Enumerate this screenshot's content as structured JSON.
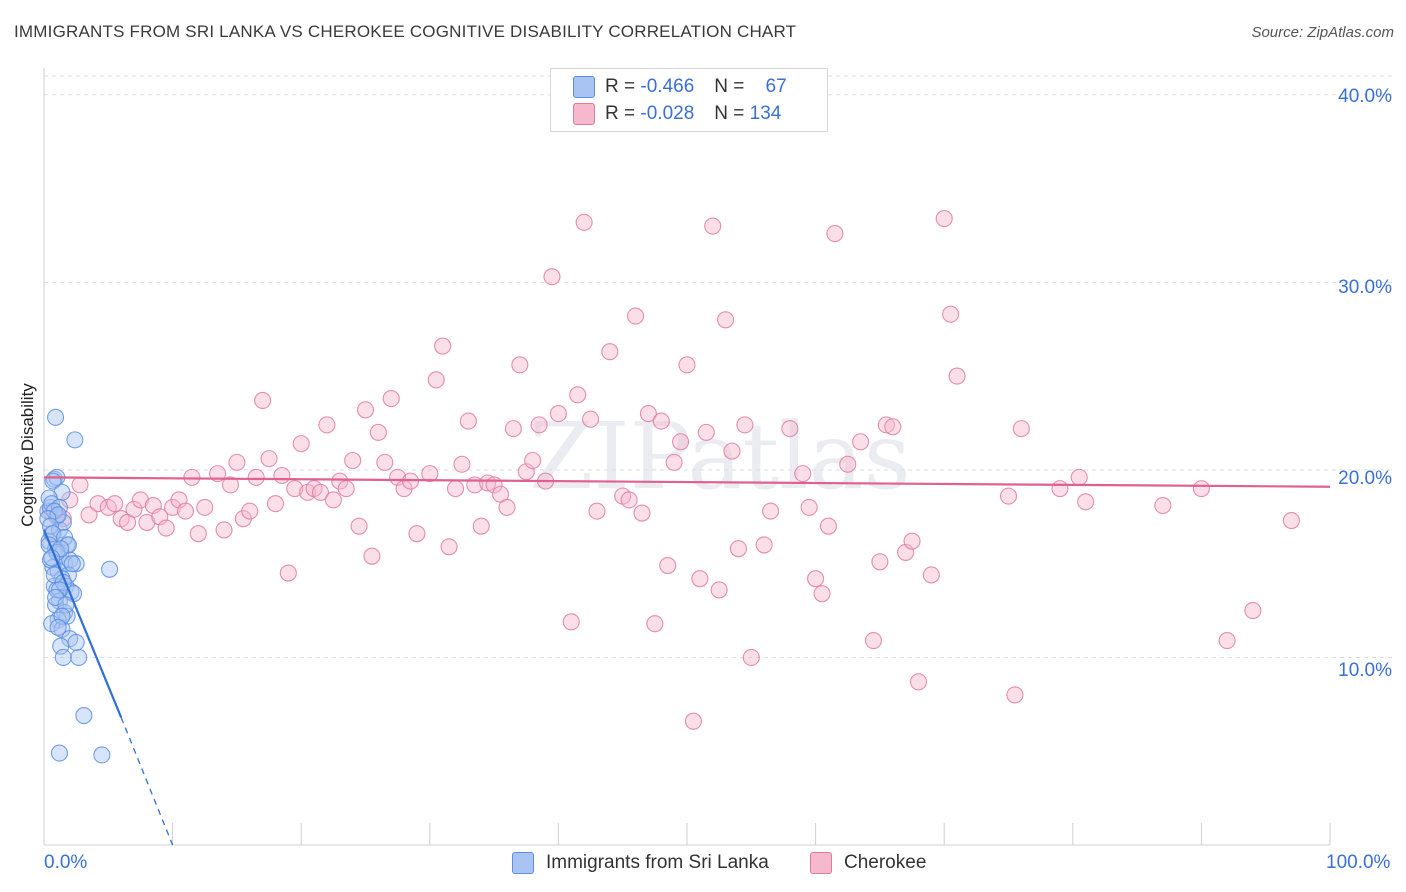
{
  "title": "IMMIGRANTS FROM SRI LANKA VS CHEROKEE COGNITIVE DISABILITY CORRELATION CHART",
  "source": "Source: ZipAtlas.com",
  "watermark": "ZIPatlas",
  "legend": {
    "rows": [
      {
        "r_label": "R =",
        "r_value": "-0.466",
        "n_label": "N =",
        "n_value": "67",
        "color": "#a9c4f2"
      },
      {
        "r_label": "R =",
        "r_value": "-0.028",
        "n_label": "N =",
        "n_value": "134",
        "color": "#f6b8cc"
      }
    ]
  },
  "chart_data": {
    "type": "scatter",
    "title": "IMMIGRANTS FROM SRI LANKA VS CHEROKEE COGNITIVE DISABILITY CORRELATION CHART",
    "xlabel": "",
    "ylabel": "Cognitive Disability",
    "xlim": [
      0,
      100
    ],
    "ylim": [
      0,
      41
    ],
    "x_tick_labels": [
      "0.0%",
      "100.0%"
    ],
    "y_ticks": [
      10,
      20,
      30,
      40
    ],
    "y_tick_labels": [
      "10.0%",
      "20.0%",
      "30.0%",
      "40.0%"
    ],
    "grid": "horizontal dashed",
    "legend_placement": "bottom-center",
    "series": [
      {
        "name": "Immigrants from Sri Lanka",
        "color": "#5b8fe0",
        "fill": "#a9c4f2",
        "trend": {
          "x": [
            0.0,
            6.0
          ],
          "y": [
            16.8,
            6.8
          ],
          "dashed_extension_to": [
            10.0,
            0.0
          ]
        },
        "points": [
          [
            0.3,
            17.8
          ],
          [
            0.5,
            18.0
          ],
          [
            0.8,
            19.5
          ],
          [
            1.0,
            17.5
          ],
          [
            0.6,
            16.6
          ],
          [
            0.4,
            16.2
          ],
          [
            1.2,
            16.8
          ],
          [
            1.5,
            17.2
          ],
          [
            1.8,
            16.0
          ],
          [
            0.9,
            15.8
          ],
          [
            1.3,
            15.5
          ],
          [
            1.6,
            15.0
          ],
          [
            2.0,
            15.2
          ],
          [
            2.5,
            15.0
          ],
          [
            0.7,
            14.8
          ],
          [
            1.1,
            14.6
          ],
          [
            0.5,
            15.2
          ],
          [
            1.9,
            14.4
          ],
          [
            1.4,
            14.2
          ],
          [
            0.8,
            13.8
          ],
          [
            1.0,
            13.6
          ],
          [
            1.7,
            13.8
          ],
          [
            2.1,
            13.5
          ],
          [
            2.3,
            13.4
          ],
          [
            1.2,
            13.0
          ],
          [
            0.9,
            12.8
          ],
          [
            1.6,
            12.4
          ],
          [
            1.8,
            12.2
          ],
          [
            1.1,
            12.0
          ],
          [
            0.6,
            11.8
          ],
          [
            1.4,
            11.5
          ],
          [
            2.0,
            11.0
          ],
          [
            1.3,
            10.6
          ],
          [
            1.5,
            10.0
          ],
          [
            2.7,
            10.0
          ],
          [
            0.9,
            22.8
          ],
          [
            2.4,
            21.6
          ],
          [
            1.0,
            19.6
          ],
          [
            0.7,
            19.4
          ],
          [
            1.4,
            18.8
          ],
          [
            0.4,
            18.5
          ],
          [
            0.6,
            18.2
          ],
          [
            1.2,
            18.0
          ],
          [
            0.8,
            17.8
          ],
          [
            1.1,
            17.6
          ],
          [
            0.3,
            17.4
          ],
          [
            0.5,
            17.0
          ],
          [
            0.7,
            16.6
          ],
          [
            1.6,
            16.4
          ],
          [
            1.9,
            16.0
          ],
          [
            0.4,
            16.0
          ],
          [
            1.0,
            15.6
          ],
          [
            1.3,
            15.8
          ],
          [
            0.6,
            15.3
          ],
          [
            2.2,
            15.0
          ],
          [
            0.8,
            14.4
          ],
          [
            1.5,
            14.0
          ],
          [
            1.2,
            13.6
          ],
          [
            0.9,
            13.2
          ],
          [
            1.7,
            12.8
          ],
          [
            1.4,
            12.2
          ],
          [
            1.1,
            11.6
          ],
          [
            2.5,
            10.8
          ],
          [
            5.1,
            14.7
          ],
          [
            3.1,
            6.9
          ],
          [
            1.2,
            4.9
          ],
          [
            4.5,
            4.8
          ]
        ]
      },
      {
        "name": "Cherokee",
        "color": "#e07aa0",
        "fill": "#f6b8cc",
        "trend": {
          "x": [
            0.0,
            100.0
          ],
          "y": [
            19.6,
            19.1
          ]
        },
        "points": [
          [
            0.5,
            17.8
          ],
          [
            1.0,
            17.6
          ],
          [
            1.5,
            17.4
          ],
          [
            2.0,
            18.4
          ],
          [
            2.8,
            19.2
          ],
          [
            3.5,
            17.6
          ],
          [
            4.2,
            18.2
          ],
          [
            5.0,
            18.0
          ],
          [
            5.5,
            18.2
          ],
          [
            6.0,
            17.4
          ],
          [
            6.5,
            17.2
          ],
          [
            7.0,
            17.9
          ],
          [
            7.5,
            18.4
          ],
          [
            8.0,
            17.2
          ],
          [
            8.5,
            18.1
          ],
          [
            9.0,
            17.5
          ],
          [
            9.5,
            16.9
          ],
          [
            10.0,
            18.0
          ],
          [
            10.5,
            18.4
          ],
          [
            11.0,
            17.8
          ],
          [
            11.5,
            19.6
          ],
          [
            12.0,
            16.6
          ],
          [
            12.5,
            18.0
          ],
          [
            13.5,
            19.8
          ],
          [
            14.0,
            16.8
          ],
          [
            14.5,
            19.2
          ],
          [
            15.0,
            20.4
          ],
          [
            15.5,
            17.4
          ],
          [
            16.0,
            17.8
          ],
          [
            16.5,
            19.6
          ],
          [
            17.0,
            23.7
          ],
          [
            17.5,
            20.6
          ],
          [
            18.0,
            18.2
          ],
          [
            18.5,
            19.7
          ],
          [
            19.0,
            14.5
          ],
          [
            19.5,
            19.0
          ],
          [
            20.0,
            21.4
          ],
          [
            20.5,
            18.8
          ],
          [
            21.0,
            19.0
          ],
          [
            21.5,
            18.8
          ],
          [
            22.0,
            22.4
          ],
          [
            22.5,
            18.4
          ],
          [
            23.0,
            19.4
          ],
          [
            23.5,
            19.0
          ],
          [
            24.0,
            20.5
          ],
          [
            24.5,
            17.0
          ],
          [
            25.0,
            23.2
          ],
          [
            25.5,
            15.4
          ],
          [
            26.0,
            22.0
          ],
          [
            26.5,
            20.4
          ],
          [
            27.0,
            23.8
          ],
          [
            27.5,
            19.6
          ],
          [
            28.0,
            19.0
          ],
          [
            28.5,
            19.4
          ],
          [
            29.0,
            16.6
          ],
          [
            30.0,
            19.8
          ],
          [
            30.5,
            24.8
          ],
          [
            31.0,
            26.6
          ],
          [
            31.5,
            15.9
          ],
          [
            32.0,
            19.0
          ],
          [
            32.5,
            20.3
          ],
          [
            33.0,
            22.6
          ],
          [
            33.5,
            19.2
          ],
          [
            34.0,
            17.0
          ],
          [
            34.5,
            19.3
          ],
          [
            35.0,
            19.2
          ],
          [
            35.5,
            18.7
          ],
          [
            36.0,
            18.0
          ],
          [
            36.5,
            22.2
          ],
          [
            37.0,
            25.6
          ],
          [
            37.5,
            19.9
          ],
          [
            38.0,
            20.5
          ],
          [
            38.5,
            22.4
          ],
          [
            39.0,
            19.4
          ],
          [
            39.5,
            30.3
          ],
          [
            40.0,
            23.0
          ],
          [
            41.0,
            11.9
          ],
          [
            41.5,
            24.0
          ],
          [
            42.0,
            33.2
          ],
          [
            42.5,
            22.7
          ],
          [
            43.0,
            17.8
          ],
          [
            44.0,
            26.3
          ],
          [
            45.0,
            18.6
          ],
          [
            45.5,
            18.4
          ],
          [
            46.0,
            28.2
          ],
          [
            46.5,
            17.7
          ],
          [
            47.0,
            23.0
          ],
          [
            47.5,
            11.8
          ],
          [
            48.0,
            22.6
          ],
          [
            48.5,
            14.9
          ],
          [
            49.0,
            20.4
          ],
          [
            49.5,
            21.5
          ],
          [
            50.0,
            25.6
          ],
          [
            50.5,
            6.6
          ],
          [
            51.0,
            14.2
          ],
          [
            51.5,
            22.0
          ],
          [
            52.0,
            33.0
          ],
          [
            52.5,
            13.6
          ],
          [
            53.0,
            28.0
          ],
          [
            53.5,
            21.0
          ],
          [
            54.0,
            15.8
          ],
          [
            54.5,
            22.4
          ],
          [
            55.0,
            10.0
          ],
          [
            56.0,
            16.0
          ],
          [
            56.5,
            17.8
          ],
          [
            58.0,
            22.2
          ],
          [
            59.0,
            19.8
          ],
          [
            59.5,
            18.0
          ],
          [
            60.0,
            14.2
          ],
          [
            60.5,
            13.4
          ],
          [
            61.0,
            17.0
          ],
          [
            61.5,
            32.6
          ],
          [
            62.5,
            20.3
          ],
          [
            63.5,
            21.5
          ],
          [
            64.5,
            10.9
          ],
          [
            65.0,
            15.1
          ],
          [
            65.5,
            22.4
          ],
          [
            66.0,
            22.3
          ],
          [
            67.0,
            15.6
          ],
          [
            67.5,
            16.2
          ],
          [
            68.0,
            8.7
          ],
          [
            69.0,
            14.4
          ],
          [
            70.0,
            33.4
          ],
          [
            70.5,
            28.3
          ],
          [
            71.0,
            25.0
          ],
          [
            75.0,
            18.6
          ],
          [
            75.5,
            8.0
          ],
          [
            76.0,
            22.2
          ],
          [
            79.0,
            19.0
          ],
          [
            80.5,
            19.6
          ],
          [
            81.0,
            18.3
          ],
          [
            87.0,
            18.1
          ],
          [
            92.0,
            10.9
          ],
          [
            94.0,
            12.5
          ],
          [
            97.0,
            17.3
          ],
          [
            90.0,
            19.0
          ]
        ]
      }
    ]
  },
  "bottom_legend": [
    {
      "label": "Immigrants from Sri Lanka",
      "color": "#a9c4f2",
      "border": "#5b8fe0"
    },
    {
      "label": "Cherokee",
      "color": "#f6b8cc",
      "border": "#e07aa0"
    }
  ]
}
